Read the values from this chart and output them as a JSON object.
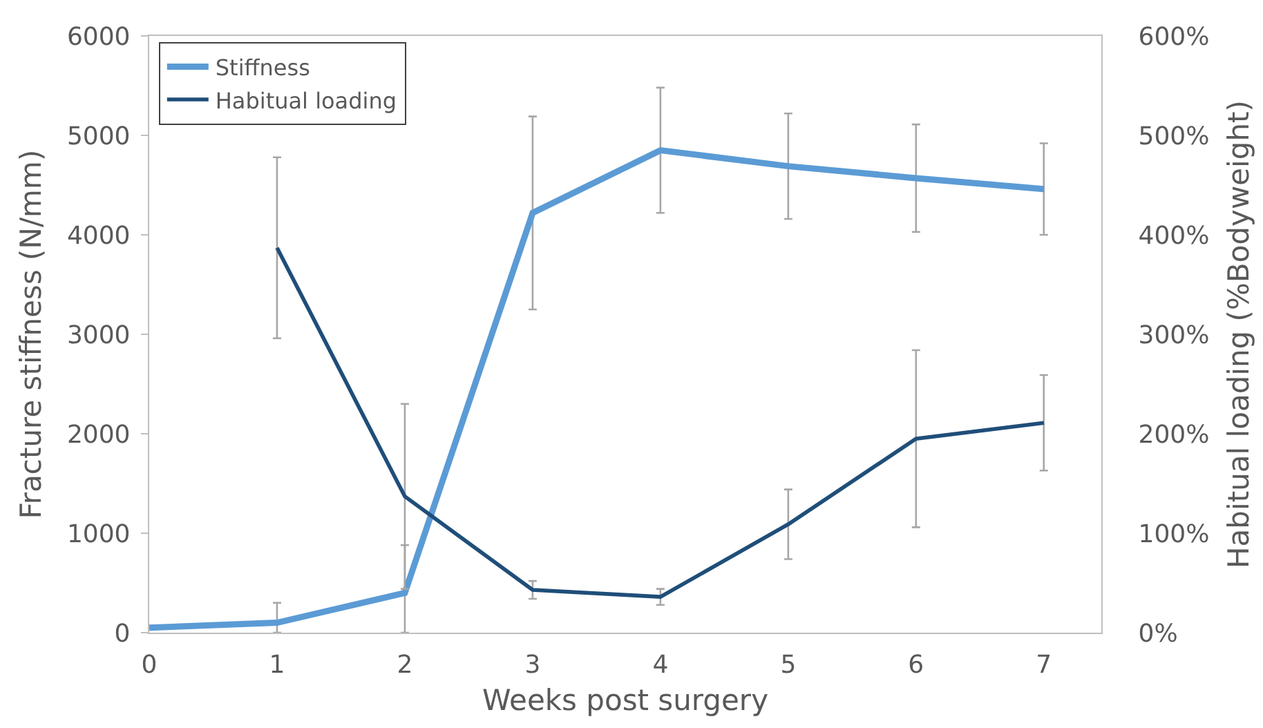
{
  "chart_data": {
    "type": "line",
    "xlabel": "Weeks post surgery",
    "ylabel": "Fracture stiffness (N/mm)",
    "y2label": "Habitual loading (%Bodyweight)",
    "x": [
      0,
      1,
      2,
      3,
      4,
      5,
      6,
      7
    ],
    "xlim": [
      0,
      7.45
    ],
    "xticks": [
      0,
      1,
      2,
      3,
      4,
      5,
      6,
      7
    ],
    "ylim": [
      0,
      6000
    ],
    "yticks": [
      0,
      1000,
      2000,
      3000,
      4000,
      5000,
      6000
    ],
    "y2lim": [
      0,
      600
    ],
    "y2ticks": [
      {
        "value": 0,
        "label": "0%"
      },
      {
        "value": 100,
        "label": "100%"
      },
      {
        "value": 200,
        "label": "200%"
      },
      {
        "value": 300,
        "label": "300%"
      },
      {
        "value": 400,
        "label": "400%"
      },
      {
        "value": 500,
        "label": "500%"
      },
      {
        "value": 600,
        "label": "600%"
      }
    ],
    "series": [
      {
        "name": "Stiffness",
        "color": "#5b9bd5",
        "values": [
          50,
          100,
          400,
          4220,
          4850,
          4690,
          4570,
          4460
        ],
        "errors": [
          null,
          [
            0,
            300
          ],
          [
            0,
            880
          ],
          970,
          630,
          530,
          540,
          460
        ]
      },
      {
        "name": "Habitual loading",
        "color": "#1f4e79",
        "axis": "y2",
        "values": [
          null,
          387,
          137,
          43,
          36,
          109,
          195,
          211
        ],
        "errors": [
          null,
          91,
          93,
          9,
          8,
          35,
          89,
          48
        ]
      }
    ],
    "legend": "top left"
  }
}
